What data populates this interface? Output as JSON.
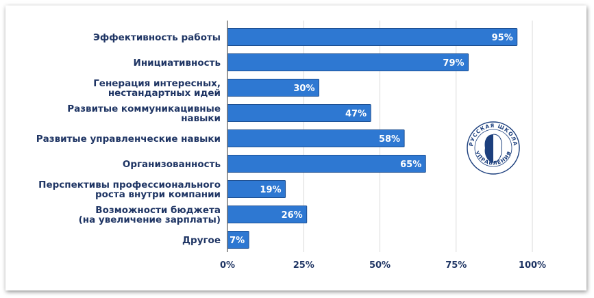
{
  "chart_data": {
    "type": "bar",
    "orientation": "horizontal",
    "categories": [
      [
        "Эффективность работы"
      ],
      [
        "Инициативность"
      ],
      [
        "Генерация интересных,",
        "нестандартных идей"
      ],
      [
        "Развитые коммуникацивные",
        "навыки"
      ],
      [
        "Развитые управленческие навыки"
      ],
      [
        "Организованность"
      ],
      [
        "Перспективы профессионального",
        "роста внутри компании"
      ],
      [
        "Возможности бюджета",
        "(на увеличение зарплаты)"
      ],
      [
        "Другое"
      ]
    ],
    "values": [
      95,
      79,
      30,
      47,
      58,
      65,
      19,
      26,
      7
    ],
    "value_labels": [
      "95%",
      "79%",
      "30%",
      "47%",
      "58%",
      "65%",
      "19%",
      "26%",
      "7%"
    ],
    "xlim": [
      0,
      100
    ],
    "x_ticks": [
      0,
      25,
      50,
      75,
      100
    ],
    "x_tick_labels": [
      "0%",
      "25%",
      "50%",
      "75%",
      "100%"
    ],
    "grid": "vertical",
    "legend": "none",
    "colors": {
      "bar": "#2e78d2",
      "bar_border": "#1d4f91",
      "text": "#1f3564",
      "grid": "#d9d9d9"
    }
  },
  "logo": {
    "text_top": "РУССКАЯ ШКОЛА",
    "text_bottom": "УПРАВЛЕНИЯ",
    "color": "#1c3f7d"
  }
}
